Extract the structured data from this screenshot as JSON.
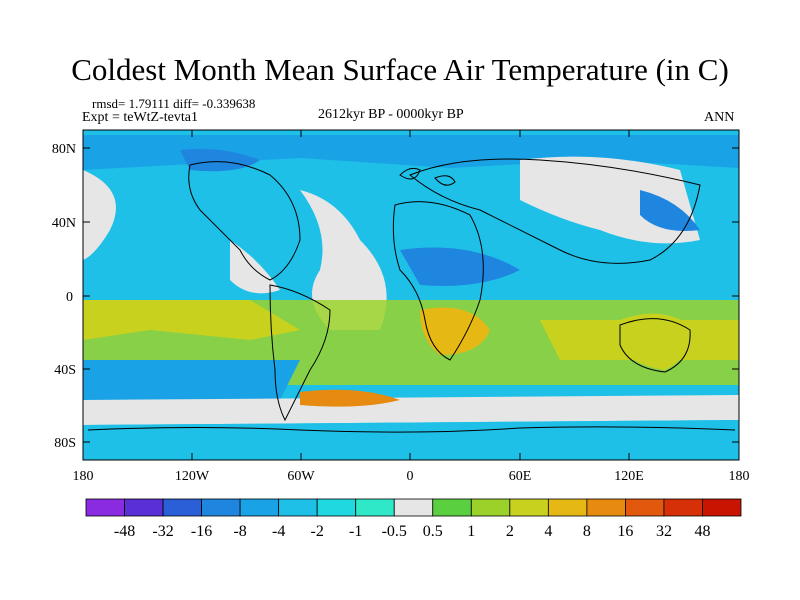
{
  "title": "Coldest Month Mean Surface Air Temperature (in C)",
  "stats": "rmsd= 1.79111 diff= -0.339638",
  "experiment": "Expt = teWtZ-tevta1",
  "period": "2612kyr BP - 0000kyr BP",
  "season": "ANN",
  "lat_labels": [
    "80N",
    "40N",
    "0",
    "40S",
    "80S"
  ],
  "lon_labels": [
    "180",
    "120W",
    "60W",
    "0",
    "60E",
    "120E",
    "180"
  ],
  "colorbar": {
    "labels": [
      "-48",
      "-32",
      "-16",
      "-8",
      "-4",
      "-2",
      "-1",
      "-0.5",
      "0.5",
      "1",
      "2",
      "4",
      "8",
      "16",
      "32",
      "48"
    ],
    "colors": [
      "#8a2be2",
      "#5a2fd6",
      "#2a5fd8",
      "#1f86e0",
      "#19a3e6",
      "#1ec0e8",
      "#20d8e0",
      "#2ee8c8",
      "#e6e6e6",
      "#5ad040",
      "#9bd22a",
      "#c8d21e",
      "#e6b814",
      "#e68a10",
      "#e2580c",
      "#d63008",
      "#c81400"
    ]
  },
  "colors": {
    "neg_small": "#1ec0e8",
    "neg_medium": "#19a3e6",
    "neg_large": "#1f86e0",
    "neutral": "#e6e6e6",
    "pos_small": "#9bd22a",
    "pos_medium": "#c8d21e",
    "pos_large": "#e6b814"
  }
}
